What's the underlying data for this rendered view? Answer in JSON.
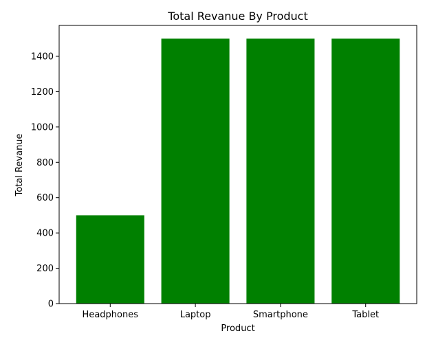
{
  "chart_data": {
    "type": "bar",
    "title": "Total Revanue By Product",
    "xlabel": "Product",
    "ylabel": "Total Revanue",
    "categories": [
      "Headphones",
      "Laptop",
      "Smartphone",
      "Tablet"
    ],
    "values": [
      500,
      1500,
      1500,
      1500
    ],
    "ylim": [
      0,
      1575
    ],
    "yticks": [
      "0",
      "200",
      "400",
      "600",
      "800",
      "1000",
      "1200",
      "1400"
    ],
    "bar_color": "#008000",
    "grid": false,
    "legend": "none"
  }
}
